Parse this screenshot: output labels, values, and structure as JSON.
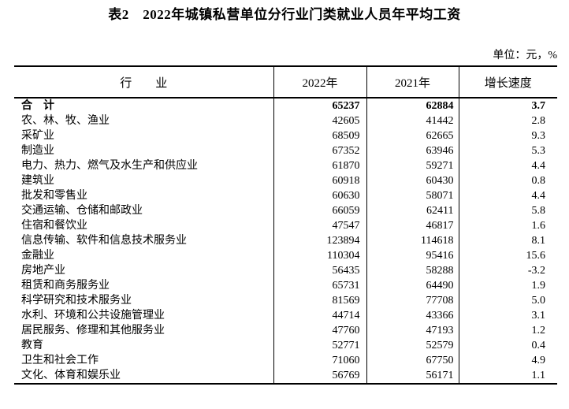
{
  "page": {
    "title": "表2　2022年城镇私营单位分行业门类就业人员年平均工资",
    "unit_note": "单位：元，%"
  },
  "table": {
    "columns": [
      "行　　业",
      "2022年",
      "2021年",
      "增长速度"
    ],
    "rows": [
      {
        "industry": "合　计",
        "y2022": "65237",
        "y2021": "62884",
        "growth": "3.7",
        "bold": true
      },
      {
        "industry": "农、林、牧、渔业",
        "y2022": "42605",
        "y2021": "41442",
        "growth": "2.8",
        "bold": false
      },
      {
        "industry": "采矿业",
        "y2022": "68509",
        "y2021": "62665",
        "growth": "9.3",
        "bold": false
      },
      {
        "industry": "制造业",
        "y2022": "67352",
        "y2021": "63946",
        "growth": "5.3",
        "bold": false
      },
      {
        "industry": "电力、热力、燃气及水生产和供应业",
        "y2022": "61870",
        "y2021": "59271",
        "growth": "4.4",
        "bold": false
      },
      {
        "industry": "建筑业",
        "y2022": "60918",
        "y2021": "60430",
        "growth": "0.8",
        "bold": false
      },
      {
        "industry": "批发和零售业",
        "y2022": "60630",
        "y2021": "58071",
        "growth": "4.4",
        "bold": false
      },
      {
        "industry": "交通运输、仓储和邮政业",
        "y2022": "66059",
        "y2021": "62411",
        "growth": "5.8",
        "bold": false
      },
      {
        "industry": "住宿和餐饮业",
        "y2022": "47547",
        "y2021": "46817",
        "growth": "1.6",
        "bold": false
      },
      {
        "industry": "信息传输、软件和信息技术服务业",
        "y2022": "123894",
        "y2021": "114618",
        "growth": "8.1",
        "bold": false
      },
      {
        "industry": "金融业",
        "y2022": "110304",
        "y2021": "95416",
        "growth": "15.6",
        "bold": false
      },
      {
        "industry": "房地产业",
        "y2022": "56435",
        "y2021": "58288",
        "growth": "-3.2",
        "bold": false
      },
      {
        "industry": "租赁和商务服务业",
        "y2022": "65731",
        "y2021": "64490",
        "growth": "1.9",
        "bold": false
      },
      {
        "industry": "科学研究和技术服务业",
        "y2022": "81569",
        "y2021": "77708",
        "growth": "5.0",
        "bold": false
      },
      {
        "industry": "水利、环境和公共设施管理业",
        "y2022": "44714",
        "y2021": "43366",
        "growth": "3.1",
        "bold": false
      },
      {
        "industry": "居民服务、修理和其他服务业",
        "y2022": "47760",
        "y2021": "47193",
        "growth": "1.2",
        "bold": false
      },
      {
        "industry": "教育",
        "y2022": "52771",
        "y2021": "52579",
        "growth": "0.4",
        "bold": false
      },
      {
        "industry": "卫生和社会工作",
        "y2022": "71060",
        "y2021": "67750",
        "growth": "4.9",
        "bold": false
      },
      {
        "industry": "文化、体育和娱乐业",
        "y2022": "56769",
        "y2021": "56171",
        "growth": "1.1",
        "bold": false
      }
    ]
  }
}
